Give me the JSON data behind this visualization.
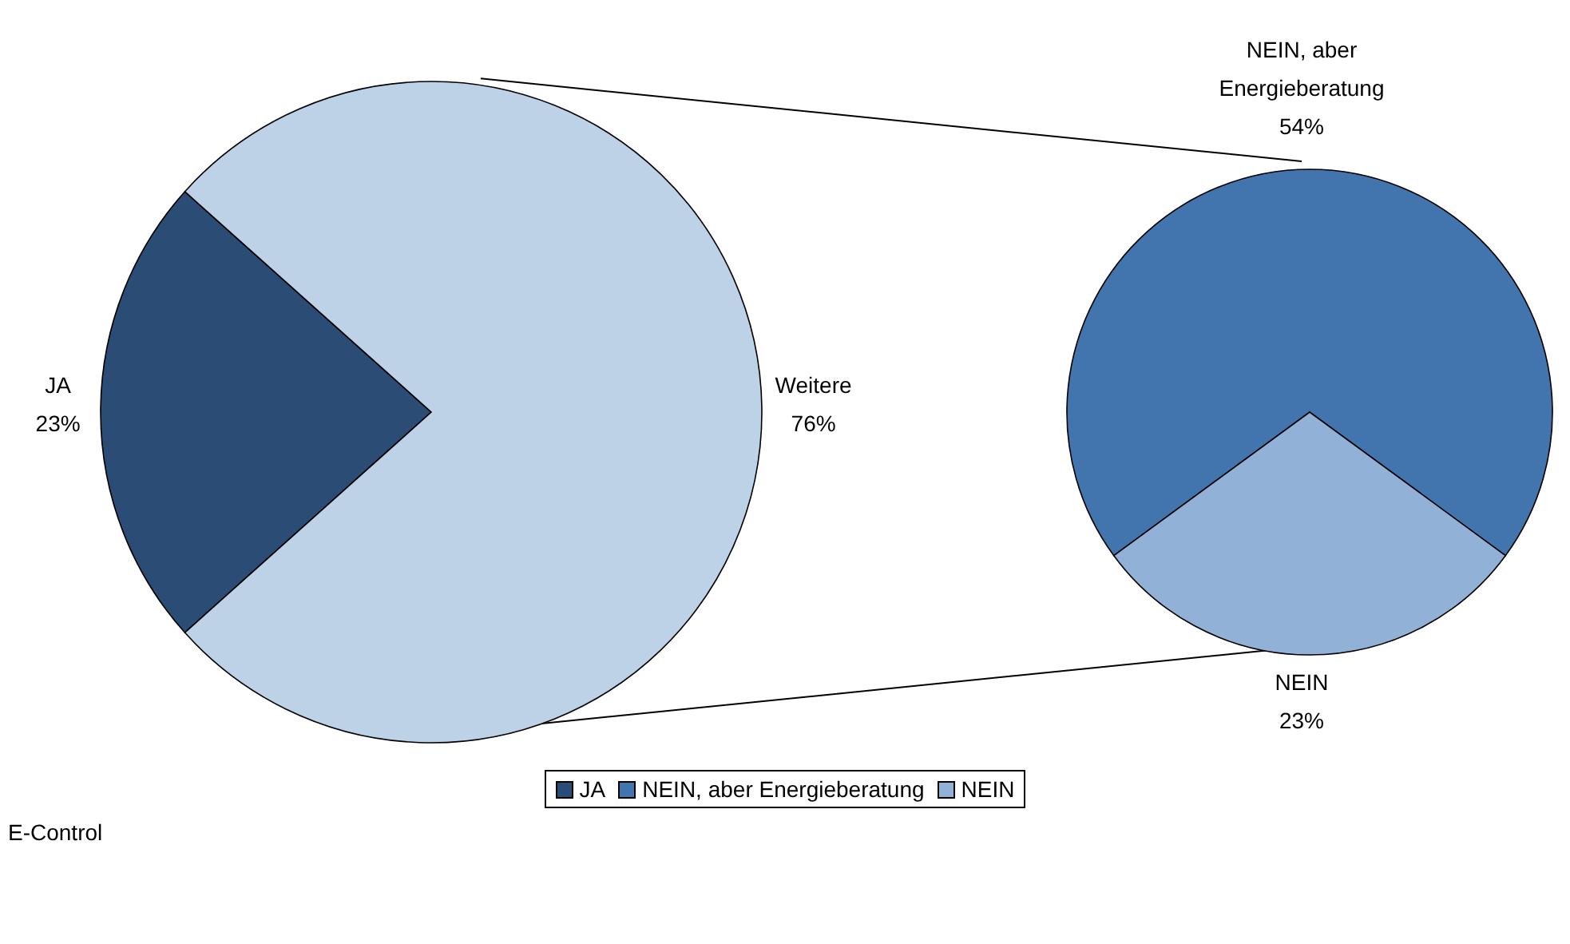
{
  "chart_data": [
    {
      "type": "pie",
      "categories": [
        "JA",
        "Weitere"
      ],
      "values": [
        23,
        76
      ],
      "colors": [
        "#2b4c74",
        "#bdd1e7"
      ],
      "value_labels": [
        "23%",
        "76%"
      ],
      "legend": "bottom",
      "annotations": [
        "E-Control"
      ]
    },
    {
      "type": "pie",
      "categories": [
        "NEIN, aber Energieberatung",
        "NEIN"
      ],
      "values": [
        54,
        23
      ],
      "colors": [
        "#4274ae",
        "#91b1d6"
      ],
      "value_labels": [
        "54%",
        "23%"
      ],
      "legend": "bottom"
    }
  ]
}
